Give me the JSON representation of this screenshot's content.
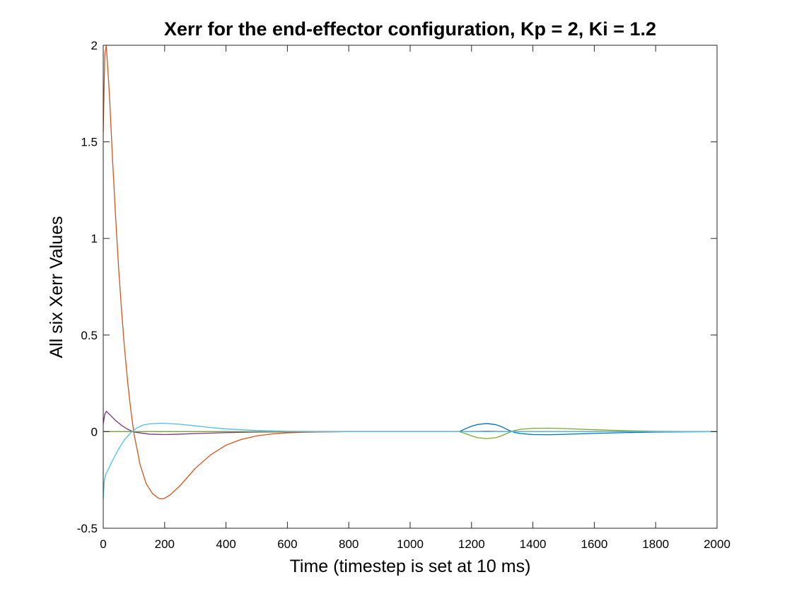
{
  "chart_data": {
    "type": "line",
    "title": "Xerr for the end-effector configuration, Kp = 2, Ki = 1.2",
    "xlabel": "Time (timestep is set at 10 ms)",
    "ylabel": "All six Xerr Values",
    "xlim": [
      0,
      2000
    ],
    "ylim": [
      -0.5,
      2
    ],
    "xticks": [
      0,
      200,
      400,
      600,
      800,
      1000,
      1200,
      1400,
      1600,
      1800,
      2000
    ],
    "yticks": [
      -0.5,
      0,
      0.5,
      1,
      1.5,
      2
    ],
    "xtick_labels": [
      "0",
      "200",
      "400",
      "600",
      "800",
      "1000",
      "1200",
      "1400",
      "1600",
      "1800",
      "2000"
    ],
    "ytick_labels": [
      "-0.5",
      "0",
      "0.5",
      "1",
      "1.5",
      "2"
    ],
    "grid": false,
    "box": true,
    "series": [
      {
        "color": "#0072BD",
        "x": [
          0,
          100,
          200,
          400,
          800,
          1160,
          1180,
          1200,
          1220,
          1250,
          1280,
          1300,
          1320,
          1340,
          1360,
          1400,
          1450,
          1500,
          1600,
          1700,
          1800,
          2000
        ],
        "y": [
          0,
          0,
          0,
          0,
          0,
          0,
          0.015,
          0.028,
          0.037,
          0.042,
          0.036,
          0.024,
          0.008,
          -0.004,
          -0.01,
          -0.015,
          -0.016,
          -0.014,
          -0.009,
          -0.005,
          -0.002,
          0
        ]
      },
      {
        "color": "#D95319",
        "x": [
          0,
          5,
          10,
          20,
          30,
          40,
          50,
          60,
          70,
          80,
          90,
          100,
          120,
          140,
          160,
          180,
          190,
          200,
          220,
          250,
          300,
          350,
          400,
          450,
          500,
          550,
          600,
          650,
          700,
          800,
          1000,
          2000
        ],
        "y": [
          1.55,
          1.95,
          2.0,
          1.75,
          1.42,
          1.12,
          0.85,
          0.62,
          0.42,
          0.25,
          0.11,
          -0.01,
          -0.17,
          -0.27,
          -0.32,
          -0.345,
          -0.348,
          -0.345,
          -0.325,
          -0.28,
          -0.19,
          -0.12,
          -0.07,
          -0.04,
          -0.022,
          -0.012,
          -0.006,
          -0.003,
          -0.0015,
          0,
          0,
          0
        ]
      },
      {
        "color": "#EDB120",
        "x": [
          0,
          2000
        ],
        "y": [
          0,
          0
        ]
      },
      {
        "color": "#7E2F8E",
        "x": [
          0,
          5,
          10,
          20,
          40,
          60,
          80,
          100,
          150,
          200,
          250,
          300,
          400,
          500,
          600,
          800,
          1160,
          1250,
          1330,
          2000
        ],
        "y": [
          0.04,
          0.09,
          0.105,
          0.09,
          0.058,
          0.032,
          0.012,
          -0.002,
          -0.013,
          -0.015,
          -0.013,
          -0.01,
          -0.005,
          -0.002,
          -0.001,
          0,
          0,
          0.002,
          0,
          0
        ]
      },
      {
        "color": "#77AC30",
        "x": [
          0,
          800,
          1160,
          1180,
          1200,
          1220,
          1250,
          1280,
          1300,
          1320,
          1340,
          1360,
          1400,
          1450,
          1500,
          1600,
          1700,
          1800,
          2000
        ],
        "y": [
          0,
          0,
          0,
          -0.01,
          -0.022,
          -0.031,
          -0.036,
          -0.031,
          -0.02,
          -0.006,
          0.006,
          0.012,
          0.017,
          0.018,
          0.016,
          0.01,
          0.005,
          0.002,
          0
        ]
      },
      {
        "color": "#4DBEEE",
        "x": [
          0,
          3,
          8,
          15,
          30,
          50,
          70,
          90,
          110,
          130,
          150,
          180,
          200,
          250,
          300,
          350,
          400,
          500,
          600,
          700,
          800,
          2000
        ],
        "y": [
          -0.35,
          -0.26,
          -0.22,
          -0.2,
          -0.15,
          -0.09,
          -0.04,
          -0.005,
          0.02,
          0.034,
          0.04,
          0.043,
          0.043,
          0.038,
          0.03,
          0.021,
          0.014,
          0.006,
          0.002,
          0.001,
          0,
          0
        ]
      }
    ]
  }
}
